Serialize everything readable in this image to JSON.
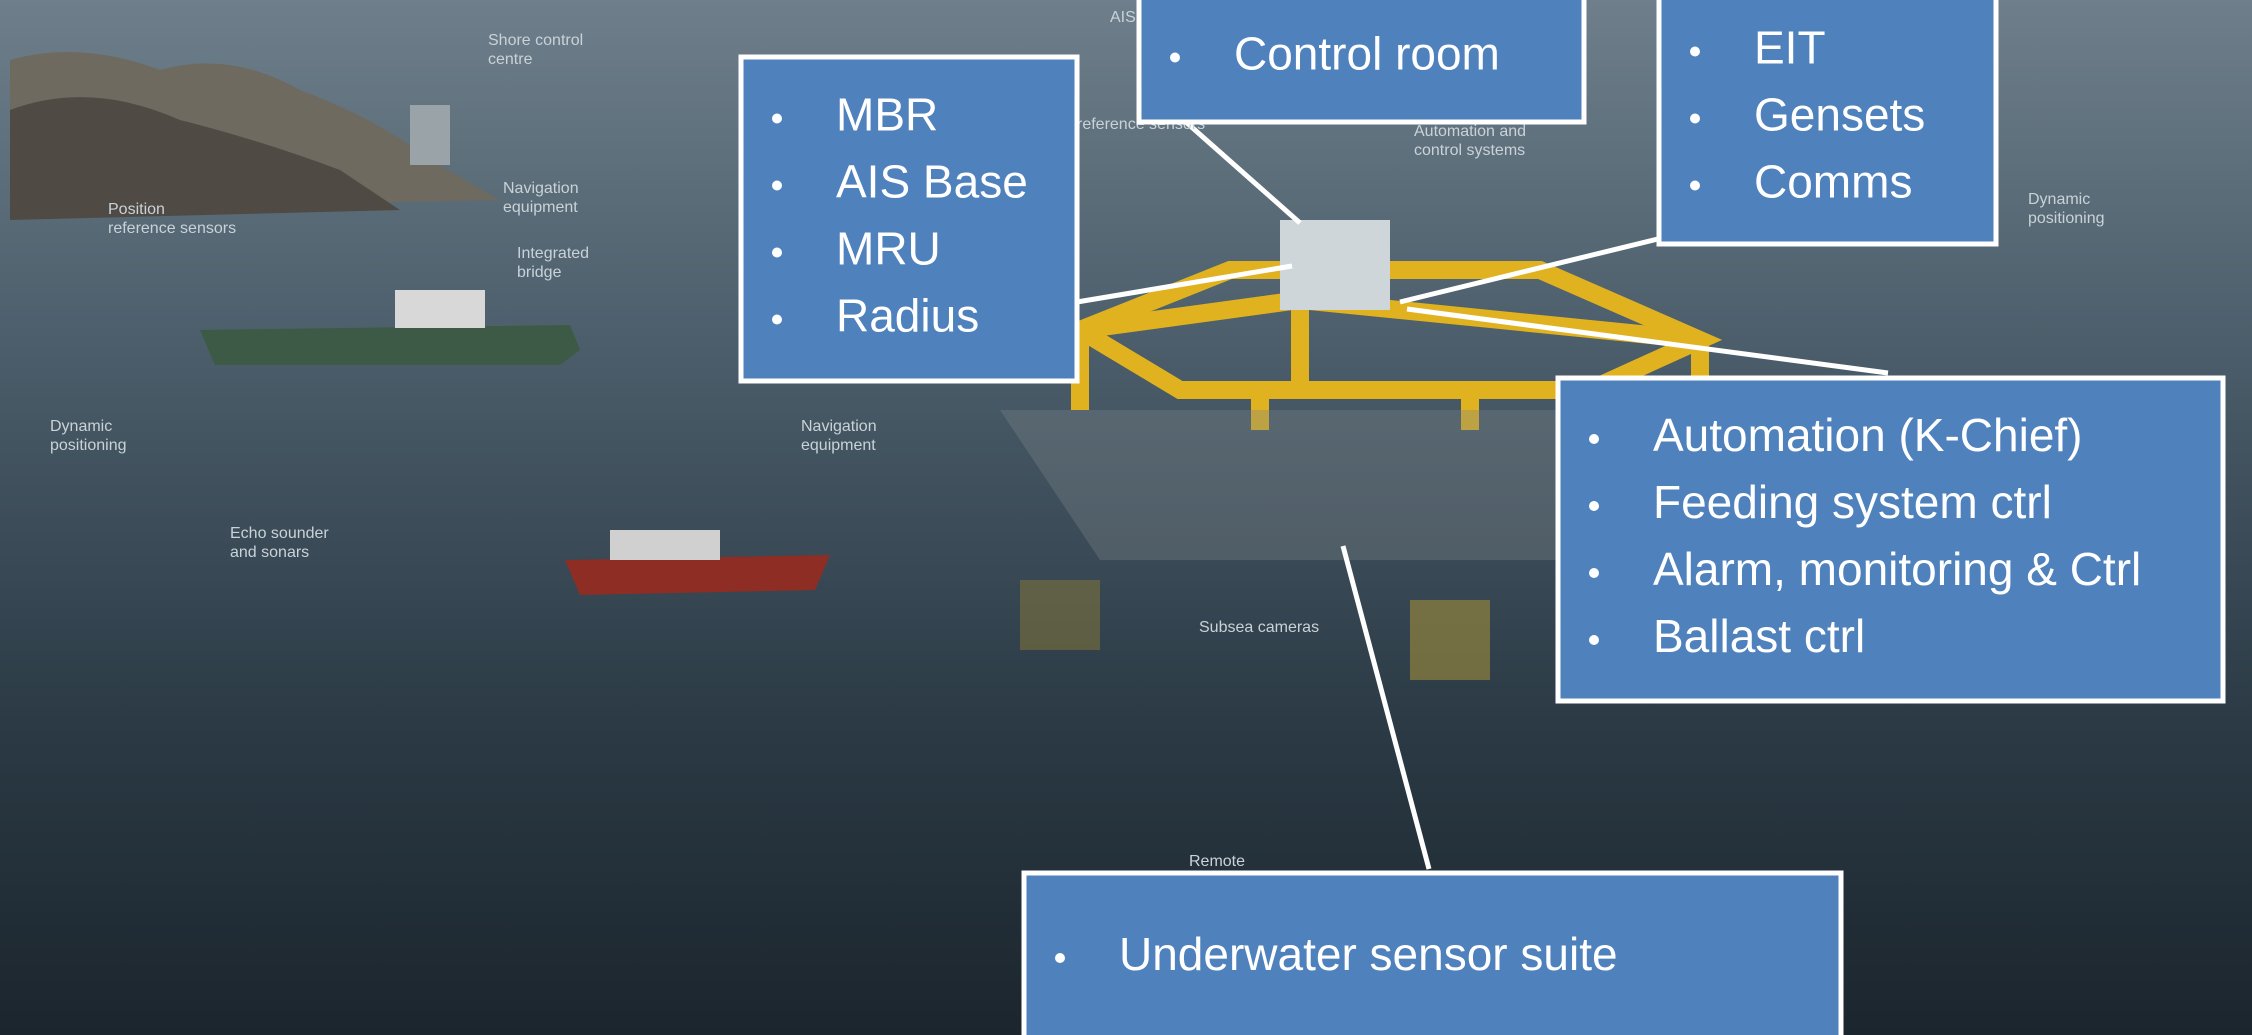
{
  "boxes": [
    {
      "items": [
        "Control room"
      ]
    },
    {
      "items": [
        "MBR",
        "AIS Base",
        "MRU",
        "Radius"
      ]
    },
    {
      "items": [
        "EIT",
        "Gensets",
        "Comms"
      ]
    },
    {
      "items": [
        "Automation (K-Chief)",
        "Feeding system ctrl",
        "Alarm, monitoring & Ctrl",
        "Ballast ctrl"
      ]
    },
    {
      "items": [
        "Underwater sensor suite"
      ]
    }
  ],
  "labels": [
    [
      "Shore control",
      "centre"
    ],
    [
      "Navigation",
      "equipment"
    ],
    [
      "Position",
      "reference sensors"
    ],
    [
      "Integrated",
      "bridge"
    ],
    [
      "Dynamic",
      "positioning"
    ],
    [
      "Echo sounder",
      "and sonars"
    ],
    [
      "Navigation",
      "equipment"
    ],
    [
      "Subsea cameras"
    ],
    [
      "Remote"
    ],
    [
      "Automation and",
      "control systems"
    ],
    [
      "reference sensors"
    ],
    [
      "AIS"
    ],
    [
      "Dynamic",
      "positioning"
    ]
  ]
}
